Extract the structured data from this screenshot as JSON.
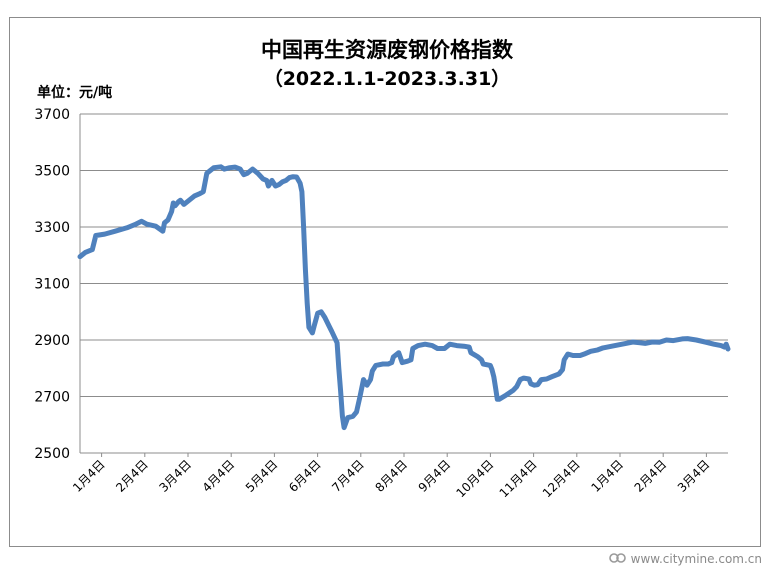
{
  "chart_data": {
    "type": "line",
    "title": "中国再生资源废钢价格指数",
    "subtitle": "（2022.1.1-2023.3.31）",
    "unit_label": "单位：元/吨",
    "ylim": [
      2500,
      3700
    ],
    "yticks": [
      "3700",
      "3500",
      "3300",
      "3100",
      "2900",
      "2700",
      "2500"
    ],
    "xticks": [
      "1月4日",
      "2月4日",
      "3月4日",
      "4月4日",
      "5月4日",
      "6月4日",
      "7月4日",
      "8月4日",
      "9月4日",
      "10月4日",
      "11月4日",
      "12月4日",
      "1月4日",
      "2月4日",
      "3月4日"
    ],
    "grid": true,
    "line_color": "#4f81bd",
    "series": [
      {
        "values": [
          [
            0,
            3195
          ],
          [
            3,
            3210
          ],
          [
            7,
            3220
          ],
          [
            9,
            3270
          ],
          [
            14,
            3275
          ],
          [
            20,
            3285
          ],
          [
            27,
            3298
          ],
          [
            31,
            3308
          ],
          [
            35,
            3320
          ],
          [
            38,
            3310
          ],
          [
            43,
            3303
          ],
          [
            47,
            3285
          ],
          [
            48,
            3315
          ],
          [
            50,
            3325
          ],
          [
            51,
            3340
          ],
          [
            52,
            3355
          ],
          [
            53,
            3385
          ],
          [
            54,
            3375
          ],
          [
            56,
            3390
          ],
          [
            57,
            3395
          ],
          [
            59,
            3380
          ],
          [
            62,
            3395
          ],
          [
            65,
            3410
          ],
          [
            68,
            3418
          ],
          [
            70,
            3425
          ],
          [
            72,
            3490
          ],
          [
            74,
            3500
          ],
          [
            76,
            3510
          ],
          [
            80,
            3513
          ],
          [
            82,
            3505
          ],
          [
            85,
            3510
          ],
          [
            88,
            3512
          ],
          [
            91,
            3505
          ],
          [
            93,
            3485
          ],
          [
            95,
            3490
          ],
          [
            98,
            3505
          ],
          [
            101,
            3490
          ],
          [
            104,
            3470
          ],
          [
            106,
            3465
          ],
          [
            107,
            3445
          ],
          [
            109,
            3465
          ],
          [
            111,
            3445
          ],
          [
            113,
            3450
          ],
          [
            115,
            3460
          ],
          [
            117,
            3465
          ],
          [
            119,
            3475
          ],
          [
            121,
            3478
          ],
          [
            123,
            3477
          ],
          [
            125,
            3455
          ],
          [
            126,
            3425
          ],
          [
            127,
            3300
          ],
          [
            128,
            3150
          ],
          [
            129,
            3030
          ],
          [
            130,
            2945
          ],
          [
            132,
            2925
          ],
          [
            133,
            2950
          ],
          [
            135,
            2995
          ],
          [
            137,
            3000
          ],
          [
            139,
            2980
          ],
          [
            141,
            2955
          ],
          [
            143,
            2930
          ],
          [
            146,
            2890
          ],
          [
            147,
            2800
          ],
          [
            148,
            2720
          ],
          [
            149,
            2630
          ],
          [
            150,
            2590
          ],
          [
            152,
            2625
          ],
          [
            155,
            2630
          ],
          [
            157,
            2645
          ],
          [
            159,
            2700
          ],
          [
            161,
            2760
          ],
          [
            163,
            2740
          ],
          [
            165,
            2760
          ],
          [
            166,
            2790
          ],
          [
            168,
            2810
          ],
          [
            172,
            2815
          ],
          [
            175,
            2815
          ],
          [
            177,
            2820
          ],
          [
            178,
            2840
          ],
          [
            181,
            2855
          ],
          [
            183,
            2820
          ],
          [
            186,
            2825
          ],
          [
            188,
            2830
          ],
          [
            189,
            2870
          ],
          [
            192,
            2880
          ],
          [
            196,
            2885
          ],
          [
            200,
            2880
          ],
          [
            203,
            2870
          ],
          [
            207,
            2870
          ],
          [
            210,
            2885
          ],
          [
            214,
            2880
          ],
          [
            218,
            2878
          ],
          [
            221,
            2875
          ],
          [
            222,
            2855
          ],
          [
            226,
            2840
          ],
          [
            228,
            2830
          ],
          [
            229,
            2815
          ],
          [
            233,
            2810
          ],
          [
            234,
            2795
          ],
          [
            235,
            2770
          ],
          [
            236,
            2730
          ],
          [
            237,
            2690
          ],
          [
            238,
            2690
          ],
          [
            242,
            2705
          ],
          [
            246,
            2722
          ],
          [
            248,
            2735
          ],
          [
            250,
            2760
          ],
          [
            252,
            2765
          ],
          [
            255,
            2762
          ],
          [
            256,
            2745
          ],
          [
            258,
            2740
          ],
          [
            260,
            2742
          ],
          [
            262,
            2760
          ],
          [
            265,
            2762
          ],
          [
            268,
            2770
          ],
          [
            272,
            2780
          ],
          [
            274,
            2795
          ],
          [
            275,
            2830
          ],
          [
            277,
            2850
          ],
          [
            280,
            2845
          ],
          [
            284,
            2845
          ],
          [
            287,
            2852
          ],
          [
            290,
            2860
          ],
          [
            294,
            2865
          ],
          [
            297,
            2872
          ],
          [
            302,
            2878
          ],
          [
            306,
            2883
          ],
          [
            310,
            2888
          ],
          [
            314,
            2893
          ],
          [
            318,
            2890
          ],
          [
            321,
            2888
          ],
          [
            325,
            2893
          ],
          [
            329,
            2892
          ],
          [
            333,
            2900
          ],
          [
            337,
            2898
          ],
          [
            342,
            2904
          ],
          [
            345,
            2905
          ],
          [
            350,
            2900
          ],
          [
            355,
            2893
          ],
          [
            360,
            2885
          ],
          [
            364,
            2880
          ],
          [
            366,
            2875
          ],
          [
            367,
            2885
          ],
          [
            368,
            2868
          ]
        ]
      }
    ]
  },
  "watermark": {
    "logo_text": "CITY MINE",
    "url": "www.citymine.com.cn"
  }
}
